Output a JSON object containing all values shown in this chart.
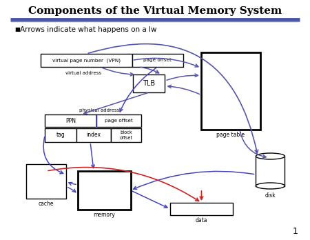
{
  "title": "Components of the Virtual Memory System",
  "subtitle": "Arrows indicate what happens on a lw",
  "background_color": "#ffffff",
  "title_color": "#000000",
  "slide_number": "1",
  "purple": "#5555aa",
  "blue": "#4444bb",
  "red": "#cc2222",
  "header_bar_color": "#4455aa"
}
